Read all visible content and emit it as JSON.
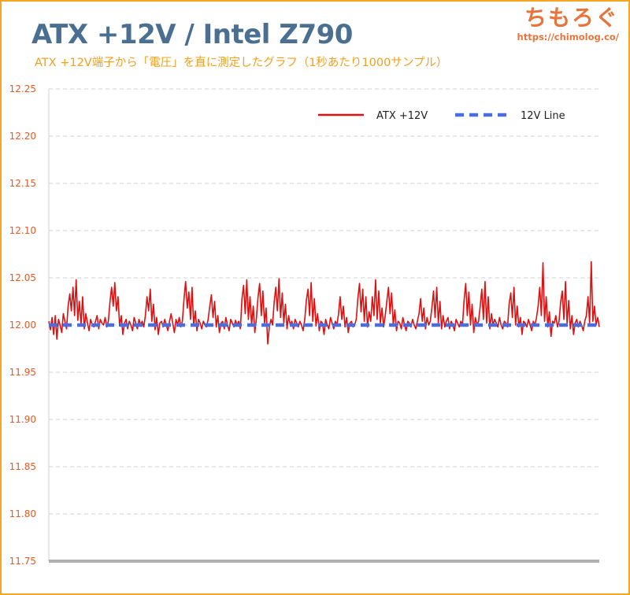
{
  "header": {
    "title": "ATX +12V / Intel Z790",
    "subtitle": "ATX +12V端子から「電圧」を直に測定したグラフ（1秒あたり1000サンプル）"
  },
  "brand": {
    "name": "ちもろぐ",
    "url": "https://chimolog.co/"
  },
  "colors": {
    "title": "#4a6f91",
    "subtitle": "#f0a020",
    "brand": "#e8743b",
    "frame": "#f5a623",
    "tick_label": "#e05a2a",
    "series_atx": "#e01010",
    "series_line": "#4a6ee0",
    "grid": "#d0d0d0",
    "baseline": "#b0b0b0"
  },
  "chart_data": {
    "type": "line",
    "title": "ATX +12V / Intel Z790",
    "subtitle": "ATX +12V端子から「電圧」を直に測定したグラフ（1秒あたり1000サンプル）",
    "ylim": [
      11.75,
      12.25
    ],
    "yticks": [
      "12.25",
      "12.20",
      "12.15",
      "12.10",
      "12.05",
      "12.00",
      "11.95",
      "11.90",
      "11.85",
      "11.80",
      "11.75"
    ],
    "grid": "horizontal dashed",
    "legend": {
      "placement": "top-right"
    },
    "series": [
      {
        "name": "ATX +12V",
        "style": "solid",
        "values": [
          12.004,
          11.995,
          12.008,
          11.99,
          12.01,
          11.985,
          12.006,
          12.0,
          11.992,
          12.012,
          12.004,
          11.996,
          12.02,
          12.033,
          12.015,
          12.04,
          12.01,
          12.048,
          12.005,
          12.025,
          12.0,
          12.03,
          11.996,
          12.012,
          12.002,
          11.994,
          12.006,
          12.0,
          11.998,
          12.004,
          12.01,
          11.996,
          12.006,
          12.002,
          12.0,
          12.008,
          11.998,
          12.004,
          12.025,
          12.04,
          12.02,
          12.045,
          12.015,
          12.03,
          11.999,
          12.01,
          11.99,
          12.002,
          12.006,
          11.996,
          12.004,
          12.0,
          11.994,
          12.008,
          12.002,
          11.996,
          12.006,
          12.0,
          12.004,
          11.998,
          12.01,
          12.03,
          12.015,
          12.038,
          12.004,
          12.022,
          11.995,
          12.008,
          11.99,
          12.002,
          12.004,
          11.998,
          12.006,
          12.0,
          11.994,
          12.004,
          12.012,
          12.002,
          11.992,
          12.006,
          12.0,
          12.008,
          11.998,
          12.004,
          12.028,
          12.046,
          12.018,
          12.035,
          12.006,
          12.04,
          12.0,
          12.015,
          11.994,
          12.006,
          12.002,
          11.996,
          12.004,
          12.0,
          11.998,
          12.006,
          12.02,
          12.032,
          12.008,
          12.025,
          11.998,
          12.01,
          11.992,
          12.002,
          12.004,
          11.996,
          12.008,
          12.0,
          11.994,
          12.006,
          12.002,
          11.998,
          12.005,
          12.0,
          12.004,
          11.996,
          12.028,
          12.042,
          12.012,
          12.048,
          12.006,
          12.03,
          12.0,
          12.02,
          11.992,
          12.008,
          12.03,
          12.044,
          12.01,
          12.036,
          12.002,
          12.018,
          11.98,
          11.998,
          12.006,
          12.0,
          12.024,
          12.04,
          12.015,
          12.049,
          12.008,
          12.034,
          12.002,
          12.022,
          11.996,
          12.01,
          12.0,
          12.004,
          11.996,
          12.006,
          12.002,
          11.998,
          12.004,
          12.0,
          11.994,
          12.006,
          12.026,
          12.038,
          12.01,
          12.045,
          12.004,
          12.028,
          11.999,
          12.012,
          11.994,
          12.004,
          12.002,
          11.99,
          12.006,
          12.0,
          11.996,
          12.008,
          12.002,
          11.996,
          12.004,
          12.0,
          12.012,
          12.03,
          12.006,
          12.02,
          11.998,
          12.008,
          11.992,
          12.002,
          12.004,
          11.998,
          12.0,
          12.006,
          12.028,
          12.044,
          12.014,
          12.038,
          12.004,
          12.03,
          11.998,
          12.014,
          12.004,
          12.03,
          12.01,
          12.048,
          12.006,
          12.036,
          12.002,
          12.018,
          11.998,
          12.01,
          12.025,
          12.04,
          12.012,
          12.034,
          12.0,
          12.016,
          11.994,
          12.004,
          12.002,
          11.996,
          12.008,
          12.0,
          11.994,
          12.004,
          12.002,
          11.998,
          12.006,
          12.0,
          11.996,
          12.004,
          12.012,
          12.028,
          12.004,
          12.018,
          11.996,
          12.008,
          12.0,
          12.004,
          12.018,
          12.036,
          12.008,
          12.04,
          12.002,
          12.025,
          11.996,
          12.01,
          11.998,
          12.004,
          12.008,
          11.996,
          12.004,
          12.0,
          11.994,
          12.006,
          12.002,
          11.998,
          12.004,
          12.0,
          12.026,
          12.044,
          12.01,
          12.035,
          12.0,
          12.022,
          11.992,
          12.008,
          12.0,
          12.004,
          12.02,
          12.038,
          12.006,
          12.046,
          12.002,
          12.03,
          11.996,
          12.012,
          12.0,
          12.006,
          12.002,
          11.998,
          12.008,
          12.0,
          11.996,
          12.004,
          12.002,
          11.998,
          12.022,
          12.034,
          12.008,
          12.04,
          12.0,
          12.02,
          11.998,
          12.008,
          11.99,
          12.004,
          12.002,
          11.998,
          12.006,
          12.0,
          11.994,
          12.004,
          12.0,
          12.008,
          12.02,
          12.04,
          12.01,
          12.066,
          12.004,
          12.03,
          11.998,
          12.014,
          11.988,
          12.004,
          12.002,
          12.01,
          11.998,
          12.004,
          12.024,
          12.036,
          12.006,
          12.046,
          12.002,
          12.026,
          11.996,
          12.01,
          11.99,
          12.002,
          12.006,
          11.998,
          12.004,
          12.0,
          11.994,
          12.004,
          12.01,
          12.03,
          12.002,
          12.067,
          12.004,
          12.02,
          12.0,
          12.008,
          11.998
        ]
      },
      {
        "name": "12V Line",
        "style": "dashed",
        "values": [
          12.0,
          12.0
        ]
      }
    ]
  }
}
